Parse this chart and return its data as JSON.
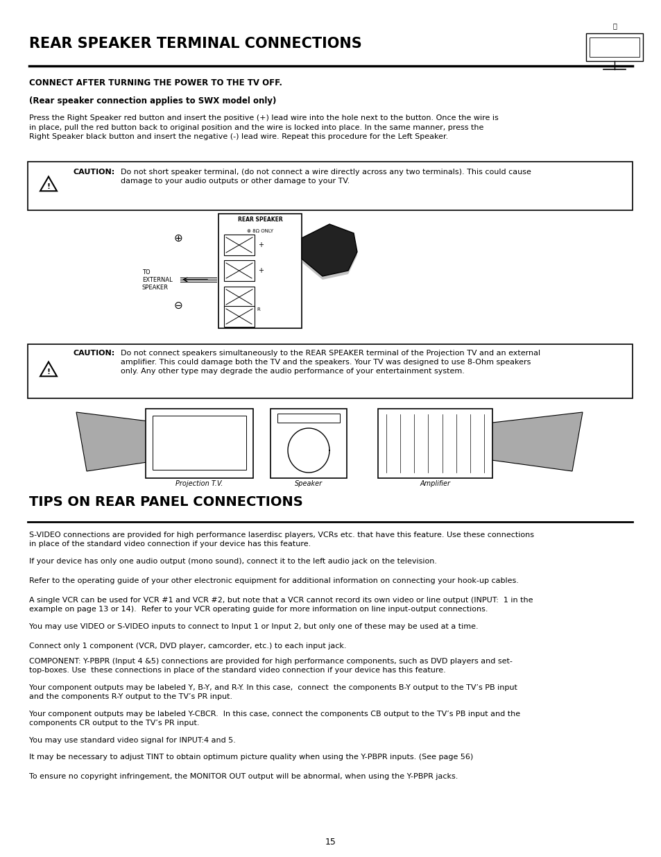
{
  "bg_color": "#ffffff",
  "page_width": 9.54,
  "page_height": 12.35,
  "title": "REAR SPEAKER TERMINAL CONNECTIONS",
  "section2_title": "TIPS ON REAR PANEL CONNECTIONS",
  "connect_heading": "CONNECT AFTER TURNING THE POWER TO THE TV OFF.",
  "connect_subheading": "(Rear speaker connection applies to SWX model only)",
  "connect_body": "Press the Right Speaker red button and insert the positive (+) lead wire into the hole next to the button. Once the wire is\nin place, pull the red button back to original position and the wire is locked into place. In the same manner, press the\nRight Speaker black button and insert the negative (-) lead wire. Repeat this procedure for the Left Speaker.",
  "caution1_bold": "CAUTION:",
  "caution1_text": "  Do not short speaker terminal, (do not connect a wire directly across any two terminals). This could cause\n  damage to your audio outputs or other damage to your TV.",
  "caution2_bold": "CAUTION:",
  "caution2_text": "  Do not connect speakers simultaneously to the REAR SPEAKER terminal of the Projection TV and an external\n  amplifier. This could damage both the TV and the speakers. Your TV was designed to use 8-Ohm speakers\n  only. Any other type may degrade the audio performance of your entertainment system.",
  "tips_para1": "S-VIDEO connections are provided for high performance laserdisc players, VCRs etc. that have this feature. Use these connections\nin place of the standard video connection if your device has this feature.",
  "tips_para2": "If your device has only one audio output (mono sound), connect it to the left audio jack on the television.",
  "tips_para3": "Refer to the operating guide of your other electronic equipment for additional information on connecting your hook-up cables.",
  "tips_para4": "A single VCR can be used for VCR #1 and VCR #2, but note that a VCR cannot record its own video or line output (INPUT:  1 in the\nexample on page 13 or 14).  Refer to your VCR operating guide for more information on line input-output connections.",
  "tips_para5": "You may use VIDEO or S-VIDEO inputs to connect to Input 1 or Input 2, but only one of these may be used at a time.",
  "tips_para6": "Connect only 1 component (VCR, DVD player, camcorder, etc.) to each input jack.",
  "tips_para7a": "COMPONENT: Y-P",
  "tips_para7b": "B",
  "tips_para7c": "P",
  "tips_para7d": "R",
  "tips_para7e": " (Input 4 &5) connections are provided for high performance components, such as DVD players and set-\ntop-boxes. Use  these connections in place of the standard video connection if your device has this feature.",
  "tips_para8": "Your component outputs may be labeled Y, B-Y, and R-Y. In this case,  connect  the components B-Y output to the TV’s PB input\nand the components R-Y output to the TV’s PR input.",
  "tips_para9": "Your component outputs may be labeled Y-CBCR.  In this case, connect the components CB output to the TV’s PB input and the\ncomponents CR output to the TV’s PR input.",
  "tips_para10": "You may use standard video signal for INPUT:4 and 5.",
  "tips_para11": "It may be necessary to adjust TINT to obtain optimum picture quality when using the Y-PBPR inputs. (See page 56)",
  "tips_para12": "To ensure no copyright infringement, the MONITOR OUT output will be abnormal, when using the Y-PBPR jacks.",
  "page_number": "15",
  "diagram_labels": [
    "Projection T.V.",
    "Speaker",
    "Amplifier"
  ],
  "speaker_label_line1": "REAR SPEAKER",
  "speaker_label_line2": "⊗ 8Ω ONLY",
  "external_label": "TO\nEXTERNAL\nSPEAKER"
}
